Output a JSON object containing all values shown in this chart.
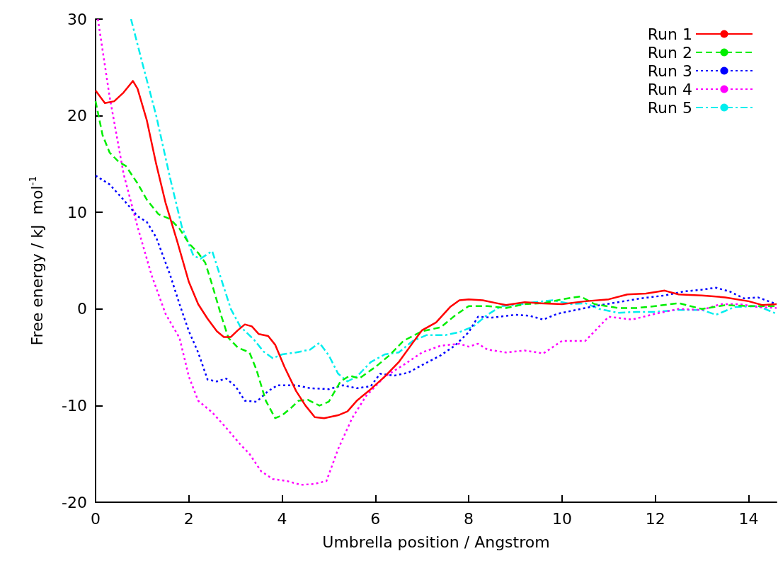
{
  "chart_data": {
    "type": "line",
    "xlabel": "Umbrella position / Angstrom",
    "ylabel": "Free energy / kJ  mol$^{-1}$",
    "xlim": [
      0,
      14.6
    ],
    "xticks": [
      0,
      2,
      4,
      6,
      8,
      10,
      12,
      14
    ],
    "ylim": [
      -20,
      30
    ],
    "yticks": [
      -20,
      -10,
      0,
      10,
      20,
      30
    ],
    "grid": false,
    "legend": "top right",
    "marker": "none",
    "series": [
      {
        "name": "Run 1",
        "color": "#ff0000",
        "line_style": "solid",
        "x": [
          0,
          0.2,
          0.4,
          0.6,
          0.8,
          0.9,
          1.1,
          1.3,
          1.5,
          1.75,
          2,
          2.2,
          2.4,
          2.6,
          2.75,
          2.9,
          3.05,
          3.2,
          3.35,
          3.5,
          3.7,
          3.85,
          4.05,
          4.3,
          4.5,
          4.7,
          4.9,
          5.2,
          5.4,
          5.6,
          5.9,
          6.2,
          6.5,
          6.8,
          7,
          7.3,
          7.6,
          7.8,
          8,
          8.3,
          8.6,
          8.8,
          9.2,
          9.5,
          10,
          10.5,
          11,
          11.4,
          11.8,
          12.2,
          12.5,
          13,
          13.5,
          14,
          14.3,
          14.6
        ],
        "values": [
          22.6,
          21.3,
          21.5,
          22.4,
          23.6,
          22.8,
          19.5,
          15,
          11,
          7,
          2.8,
          0.5,
          -1,
          -2.3,
          -2.9,
          -2.9,
          -2.2,
          -1.6,
          -1.8,
          -2.6,
          -2.8,
          -3.7,
          -6,
          -8.5,
          -10,
          -11.2,
          -11.3,
          -11,
          -10.6,
          -9.5,
          -8.3,
          -7,
          -5.5,
          -3.5,
          -2.2,
          -1.4,
          0.2,
          0.9,
          1,
          0.9,
          0.6,
          0.4,
          0.7,
          0.6,
          0.5,
          0.8,
          1,
          1.5,
          1.6,
          1.9,
          1.5,
          1.4,
          1.2,
          0.8,
          0.4,
          0.5
        ]
      },
      {
        "name": "Run 2",
        "color": "#00ee00",
        "line_style": "dashed",
        "x": [
          0,
          0.15,
          0.3,
          0.5,
          0.65,
          0.9,
          1.1,
          1.35,
          1.6,
          1.8,
          2,
          2.2,
          2.35,
          2.5,
          2.7,
          2.85,
          3.05,
          3.3,
          3.45,
          3.65,
          3.85,
          4,
          4.2,
          4.35,
          4.55,
          4.8,
          5,
          5.25,
          5.45,
          5.65,
          6,
          6.3,
          6.6,
          7,
          7.4,
          7.7,
          8,
          8.4,
          8.8,
          9.2,
          9.6,
          10,
          10.4,
          10.7,
          11.2,
          11.6,
          12,
          12.5,
          13,
          13.5,
          14,
          14.6
        ],
        "values": [
          21.5,
          18,
          16.2,
          15.2,
          14.8,
          13,
          11.3,
          9.8,
          9.3,
          8.3,
          6.8,
          5.8,
          4.8,
          2.5,
          -0.8,
          -3,
          -4,
          -4.5,
          -6.3,
          -9.5,
          -11.3,
          -11,
          -10.2,
          -9.5,
          -9.4,
          -10,
          -9.6,
          -7.5,
          -6.9,
          -7.2,
          -6,
          -4.8,
          -3.3,
          -2.3,
          -1.9,
          -0.7,
          0.3,
          0.3,
          0.1,
          0.5,
          0.6,
          1,
          1.3,
          0.5,
          0.1,
          0.1,
          0.3,
          0.6,
          0,
          0.4,
          0.3,
          0.3
        ]
      },
      {
        "name": "Run 3",
        "color": "#0000ff",
        "line_style": "dotted",
        "x": [
          0,
          0.3,
          0.6,
          0.9,
          1.1,
          1.3,
          1.6,
          1.8,
          2,
          2.2,
          2.4,
          2.6,
          2.8,
          3,
          3.2,
          3.45,
          3.7,
          3.9,
          4.3,
          4.6,
          5,
          5.3,
          5.6,
          5.9,
          6.1,
          6.4,
          6.7,
          7,
          7.4,
          7.7,
          8,
          8.2,
          8.5,
          9,
          9.3,
          9.6,
          9.9,
          10.3,
          10.7,
          11.2,
          11.7,
          12.2,
          12.6,
          13,
          13.3,
          13.6,
          13.9,
          14.2,
          14.6
        ],
        "values": [
          13.8,
          12.9,
          11.3,
          9.6,
          9,
          7.4,
          3.5,
          0.5,
          -2.3,
          -4.5,
          -7.3,
          -7.5,
          -7.2,
          -8,
          -9.5,
          -9.6,
          -8.5,
          -7.9,
          -7.9,
          -8.2,
          -8.3,
          -7.9,
          -8.2,
          -8,
          -6.7,
          -6.9,
          -6.6,
          -5.8,
          -4.8,
          -3.8,
          -2.4,
          -0.8,
          -0.9,
          -0.6,
          -0.7,
          -1.1,
          -0.5,
          -0.1,
          0.3,
          0.7,
          1.1,
          1.4,
          1.8,
          2,
          2.2,
          1.8,
          1.1,
          1.2,
          0.5
        ]
      },
      {
        "name": "Run 4",
        "color": "#ff00ff",
        "line_style": "dotted",
        "x": [
          0.05,
          0.3,
          0.6,
          0.9,
          1.2,
          1.5,
          1.8,
          2,
          2.2,
          2.5,
          2.8,
          3.1,
          3.3,
          3.55,
          3.8,
          4.1,
          4.4,
          4.7,
          4.95,
          5.2,
          5.5,
          5.8,
          6.2,
          6.6,
          7,
          7.4,
          7.8,
          8,
          8.2,
          8.4,
          8.8,
          9.2,
          9.6,
          10,
          10.5,
          11,
          11.5,
          12,
          12.5,
          13,
          13.4,
          13.8,
          14.2,
          14.6
        ],
        "values": [
          30,
          22,
          14,
          8.5,
          3.5,
          -0.5,
          -3,
          -7,
          -9.5,
          -10.7,
          -12.3,
          -14,
          -15,
          -16.8,
          -17.6,
          -17.8,
          -18.2,
          -18.1,
          -17.8,
          -14.5,
          -11.3,
          -9,
          -7,
          -5.8,
          -4.5,
          -3.8,
          -3.6,
          -3.9,
          -3.6,
          -4.2,
          -4.5,
          -4.3,
          -4.6,
          -3.3,
          -3.3,
          -0.8,
          -1.1,
          -0.5,
          0,
          -0.1,
          0.5,
          0.5,
          0.2,
          0.1
        ]
      },
      {
        "name": "Run 5",
        "color": "#00eeee",
        "line_style": "dashdot",
        "x": [
          0.76,
          1,
          1.3,
          1.6,
          1.85,
          2.1,
          2.25,
          2.5,
          2.7,
          2.9,
          3.1,
          3.4,
          3.6,
          3.8,
          4,
          4.3,
          4.6,
          4.8,
          5,
          5.2,
          5.4,
          5.6,
          5.9,
          6.2,
          6.5,
          6.8,
          7.1,
          7.5,
          7.8,
          8.1,
          8.4,
          8.7,
          9,
          9.4,
          9.8,
          10.2,
          10.5,
          10.8,
          11.2,
          11.6,
          12,
          12.5,
          13,
          13.3,
          13.7,
          14.2,
          14.6
        ],
        "values": [
          30,
          25.5,
          20,
          13.5,
          8.5,
          5.5,
          5.2,
          6,
          3,
          0,
          -1.8,
          -3.2,
          -4.4,
          -5.1,
          -4.7,
          -4.5,
          -4.2,
          -3.5,
          -4.8,
          -6.7,
          -7.5,
          -7,
          -5.5,
          -4.7,
          -4.5,
          -3.3,
          -2.7,
          -2.7,
          -2.4,
          -1.8,
          -0.6,
          0.3,
          0.4,
          0.7,
          0.9,
          0.5,
          0.6,
          0,
          -0.4,
          -0.3,
          -0.3,
          -0.1,
          -0.1,
          -0.6,
          0.2,
          0.3,
          -0.5
        ]
      }
    ]
  }
}
